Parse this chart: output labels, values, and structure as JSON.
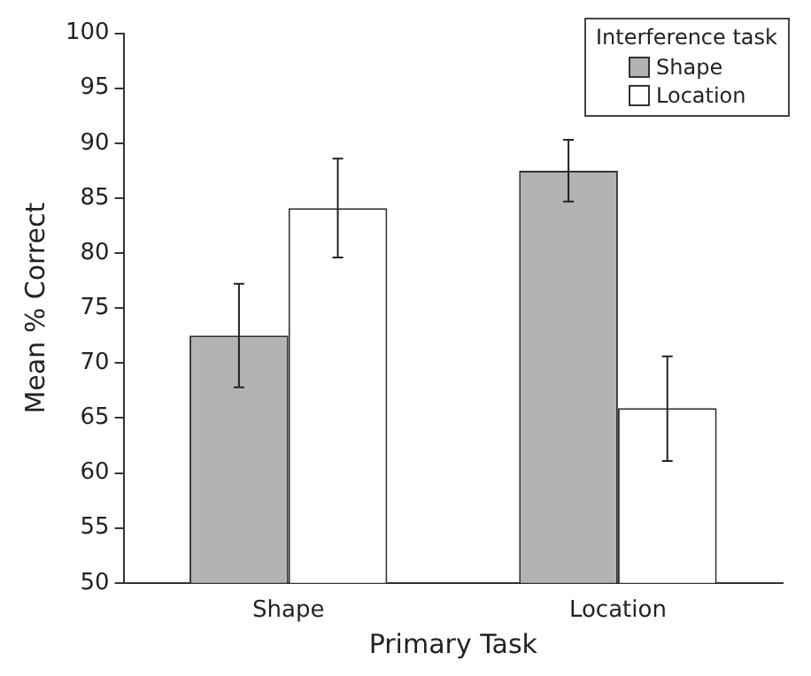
{
  "chart_data": {
    "type": "bar",
    "xlabel": "Primary Task",
    "ylabel": "Mean % Correct",
    "legend_title": "Interference task",
    "categories": [
      "Shape",
      "Location"
    ],
    "series": [
      {
        "name": "Shape",
        "color": "#b3b3b3",
        "values": [
          72.5,
          87.5
        ],
        "errors": [
          [
            67.8,
            77.2
          ],
          [
            84.7,
            90.3
          ]
        ]
      },
      {
        "name": "Location",
        "color": "#ffffff",
        "values": [
          84.1,
          65.9
        ],
        "errors": [
          [
            79.6,
            88.6
          ],
          [
            61.1,
            70.6
          ]
        ]
      }
    ],
    "ylim": [
      50,
      100
    ],
    "yticks": [
      50,
      55,
      60,
      65,
      70,
      75,
      80,
      85,
      90,
      95,
      100
    ],
    "grid": false,
    "legend": "top right"
  }
}
